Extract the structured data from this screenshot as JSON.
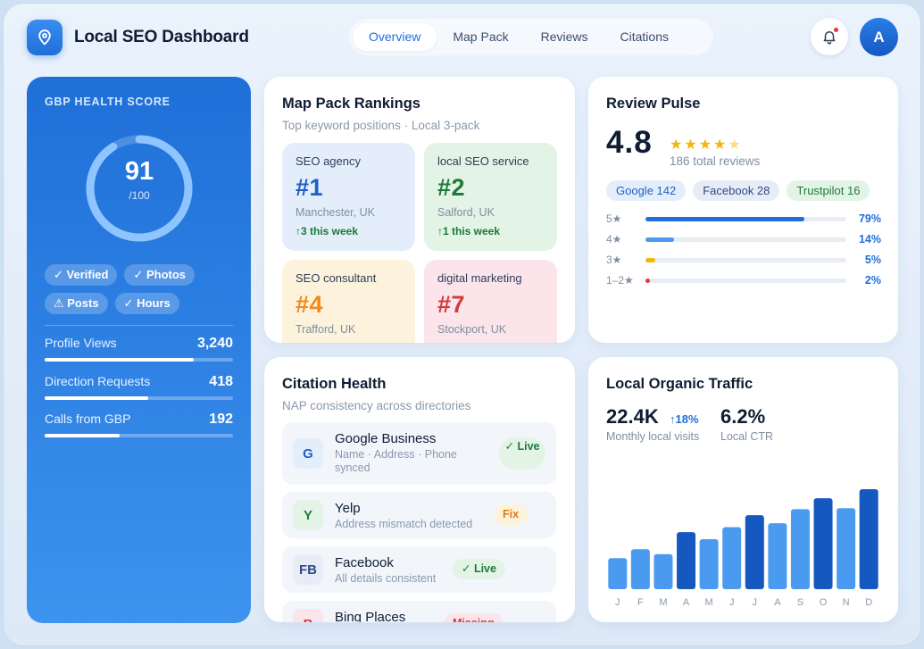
{
  "app": {
    "title": "Local SEO Dashboard"
  },
  "nav": {
    "tabs": [
      "Overview",
      "Map Pack",
      "Reviews",
      "Citations"
    ],
    "active": "Overview"
  },
  "user": {
    "avatar_initial": "A",
    "has_notification": true
  },
  "gbp": {
    "label": "GBP HEALTH SCORE",
    "score": "91",
    "score_of": "/100",
    "score_value": 91,
    "chips": [
      "✓ Verified",
      "✓ Photos",
      "⚠ Posts",
      "✓ Hours"
    ],
    "metrics": [
      {
        "label": "Profile Views",
        "value": "3,240",
        "progress": 0.79
      },
      {
        "label": "Direction Requests",
        "value": "418",
        "progress": 0.55
      },
      {
        "label": "Calls from GBP",
        "value": "192",
        "progress": 0.4
      }
    ]
  },
  "map_pack": {
    "title": "Map Pack Rankings",
    "subtitle": "Top keyword positions · Local 3-pack",
    "tiles": [
      {
        "keyword": "SEO agency",
        "rank": "#1",
        "location": "Manchester, UK",
        "trend": "↑3 this week",
        "color": "#1f5fc8",
        "bg": "#e4eefb"
      },
      {
        "keyword": "local SEO service",
        "rank": "#2",
        "location": "Salford, UK",
        "trend": "↑1 this week",
        "color": "#1f7a3a",
        "bg": "#e3f3e6"
      },
      {
        "keyword": "SEO consultant",
        "rank": "#4",
        "location": "Trafford, UK",
        "trend": "",
        "color": "#f08a1c",
        "bg": "#fdf3dc"
      },
      {
        "keyword": "digital marketing",
        "rank": "#7",
        "location": "Stockport, UK",
        "trend": "",
        "color": "#d63a3a",
        "bg": "#fbe5ea"
      }
    ]
  },
  "reviews": {
    "title": "Review Pulse",
    "rating": "4.8",
    "stars": "★★★★",
    "half_star": "★",
    "total": "186 total reviews",
    "sources": [
      {
        "label": "Google 142",
        "bg": "#e4eefb",
        "color": "#1f5fc8"
      },
      {
        "label": "Facebook 28",
        "bg": "#e8ecf6",
        "color": "#2d4a86"
      },
      {
        "label": "Trustpilot 16",
        "bg": "#e3f3e6",
        "color": "#1f7a3a"
      }
    ],
    "distribution": [
      {
        "label": "5★",
        "pct": "79%",
        "value": 0.79,
        "color": "#1f6fd8"
      },
      {
        "label": "4★",
        "pct": "14%",
        "value": 0.14,
        "color": "#4a9bf0"
      },
      {
        "label": "3★",
        "pct": "5%",
        "value": 0.05,
        "color": "#f5b50a"
      },
      {
        "label": "1–2★",
        "pct": "2%",
        "value": 0.02,
        "color": "#e5383b"
      }
    ]
  },
  "citations": {
    "title": "Citation Health",
    "subtitle": "NAP consistency across directories",
    "rows": [
      {
        "initial": "G",
        "name": "Google Business",
        "desc": "Name · Address · Phone synced",
        "status": "✓ Live",
        "badge_bg": "#e4eefb",
        "badge_color": "#1f5fc8",
        "status_bg": "#e3f3e6",
        "status_color": "#1f7a3a"
      },
      {
        "initial": "Y",
        "name": "Yelp",
        "desc": "Address mismatch detected",
        "status": "Fix",
        "badge_bg": "#e3f3e6",
        "badge_color": "#1f7a3a",
        "status_bg": "#fdf3dc",
        "status_color": "#e07a10"
      },
      {
        "initial": "FB",
        "name": "Facebook",
        "desc": "All details consistent",
        "status": "✓ Live",
        "badge_bg": "#e8ecf6",
        "badge_color": "#2d4a86",
        "status_bg": "#e3f3e6",
        "status_color": "#1f7a3a"
      },
      {
        "initial": "B",
        "name": "Bing Places",
        "desc": "",
        "status": "Missing",
        "badge_bg": "#fbe5ea",
        "badge_color": "#d63a3a",
        "status_bg": "#fbe5ea",
        "status_color": "#d63a3a"
      }
    ]
  },
  "traffic": {
    "title": "Local Organic Traffic",
    "visits": "22.4K",
    "visits_delta": "↑18%",
    "visits_label": "Monthly local visits",
    "ctr": "6.2%",
    "ctr_label": "Local CTR"
  },
  "chart_data": {
    "type": "bar",
    "title": "Local Organic Traffic",
    "categories": [
      "J",
      "F",
      "M",
      "A",
      "M",
      "J",
      "J",
      "A",
      "S",
      "O",
      "N",
      "D"
    ],
    "values": [
      31,
      40,
      35,
      57,
      50,
      62,
      74,
      66,
      80,
      91,
      81,
      100
    ],
    "ylim": [
      0,
      100
    ],
    "xlabel": "",
    "ylabel": "",
    "grid": false,
    "highlighted": [
      3,
      6,
      9,
      11
    ],
    "colors": {
      "highlight": "#1558c0",
      "normal": "#4a9bf0"
    }
  }
}
